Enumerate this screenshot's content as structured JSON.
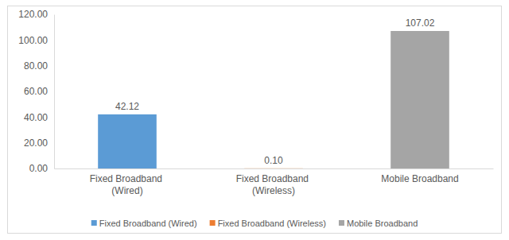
{
  "chart_data": {
    "type": "bar",
    "categories": [
      "Fixed Broadband (Wired)",
      "Fixed Broadband (Wireless)",
      "Mobile Broadband"
    ],
    "values": [
      42.12,
      0.1,
      107.02
    ],
    "value_labels": [
      "42.12",
      "0.10",
      "107.02"
    ],
    "colors": [
      "#5b9bd5",
      "#ed7d31",
      "#a5a5a5"
    ],
    "ylim": [
      0,
      120
    ],
    "yticks": [
      {
        "value": 0,
        "label": "0.00"
      },
      {
        "value": 20,
        "label": "20.00"
      },
      {
        "value": 40,
        "label": "40.00"
      },
      {
        "value": 60,
        "label": "60.00"
      },
      {
        "value": 80,
        "label": "80.00"
      },
      {
        "value": 100,
        "label": "100.00"
      },
      {
        "value": 120,
        "label": "120.00"
      }
    ],
    "grid": false,
    "data_labels": true,
    "legend": "bottom"
  }
}
